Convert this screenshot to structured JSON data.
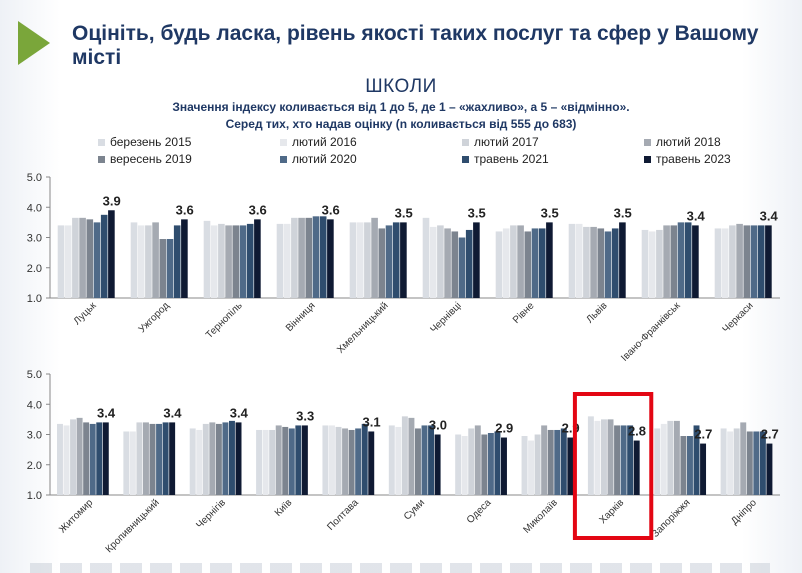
{
  "header": {
    "title": "Оцініть, будь ласка, рівень якості таких послуг та сфер у Вашому місті"
  },
  "chart_data": {
    "type": "bar",
    "title": "ШКОЛИ",
    "subtitle_1": "Значення індексу коливається від 1 до 5, де 1 – «жахливо», а 5 – «відмінно».",
    "subtitle_2": "Серед тих, хто надав оцінку (n коливається від 555 до 683)",
    "ylim": [
      1.0,
      5.0
    ],
    "yticks": [
      "1.0",
      "2.0",
      "3.0",
      "4.0",
      "5.0"
    ],
    "legend": [
      {
        "name": "березень 2015",
        "color": "#d9dde3"
      },
      {
        "name": "лютий 2016",
        "color": "#e6e8ec"
      },
      {
        "name": "лютий 2017",
        "color": "#cfd3d9"
      },
      {
        "name": "лютий 2018",
        "color": "#a5aab2"
      },
      {
        "name": "вересень 2019",
        "color": "#7c848f"
      },
      {
        "name": "лютий 2020",
        "color": "#4f6a88"
      },
      {
        "name": "травень 2021",
        "color": "#2f4d6e"
      },
      {
        "name": "травень 2023",
        "color": "#0f1a33"
      }
    ],
    "panels": [
      {
        "cities": [
          {
            "name": "Луцьк",
            "label": "3.9",
            "values": [
              3.4,
              3.4,
              3.65,
              3.65,
              3.6,
              3.5,
              3.75,
              3.9
            ]
          },
          {
            "name": "Ужгород",
            "label": "3.6",
            "values": [
              3.5,
              3.4,
              3.4,
              3.5,
              2.95,
              2.95,
              3.4,
              3.6
            ]
          },
          {
            "name": "Тернопіль",
            "label": "3.6",
            "values": [
              3.55,
              3.4,
              3.45,
              3.4,
              3.4,
              3.4,
              3.45,
              3.6
            ]
          },
          {
            "name": "Вінниця",
            "label": "3.6",
            "values": [
              3.45,
              3.45,
              3.65,
              3.65,
              3.65,
              3.7,
              3.7,
              3.6
            ]
          },
          {
            "name": "Хмельницький",
            "label": "3.5",
            "values": [
              3.5,
              3.5,
              3.5,
              3.65,
              3.3,
              3.4,
              3.5,
              3.5
            ]
          },
          {
            "name": "Чернівці",
            "label": "3.5",
            "values": [
              3.65,
              3.35,
              3.4,
              3.3,
              3.2,
              3.0,
              3.25,
              3.5
            ]
          },
          {
            "name": "Рівне",
            "label": "3.5",
            "values": [
              3.2,
              3.3,
              3.4,
              3.4,
              3.2,
              3.3,
              3.3,
              3.5
            ]
          },
          {
            "name": "Львів",
            "label": "3.5",
            "values": [
              3.45,
              3.45,
              3.35,
              3.35,
              3.3,
              3.2,
              3.3,
              3.5
            ]
          },
          {
            "name": "Івано-Франківськ",
            "label": "3.4",
            "values": [
              3.25,
              3.2,
              3.25,
              3.4,
              3.4,
              3.5,
              3.5,
              3.4
            ]
          },
          {
            "name": "Черкаси",
            "label": "3.4",
            "values": [
              3.3,
              3.3,
              3.4,
              3.45,
              3.4,
              3.4,
              3.4,
              3.4
            ]
          }
        ]
      },
      {
        "cities": [
          {
            "name": "Житомир",
            "label": "3.4",
            "values": [
              3.35,
              3.3,
              3.5,
              3.55,
              3.4,
              3.35,
              3.4,
              3.4
            ]
          },
          {
            "name": "Кропивницький",
            "label": "3.4",
            "values": [
              3.1,
              3.1,
              3.4,
              3.4,
              3.35,
              3.35,
              3.4,
              3.4
            ]
          },
          {
            "name": "Чернігів",
            "label": "3.4",
            "values": [
              3.2,
              3.15,
              3.35,
              3.4,
              3.35,
              3.4,
              3.45,
              3.4
            ]
          },
          {
            "name": "Київ",
            "label": "3.3",
            "values": [
              3.15,
              3.15,
              3.15,
              3.3,
              3.25,
              3.2,
              3.3,
              3.3
            ]
          },
          {
            "name": "Полтава",
            "label": "3.1",
            "values": [
              3.3,
              3.3,
              3.25,
              3.2,
              3.15,
              3.2,
              3.35,
              3.1
            ]
          },
          {
            "name": "Суми",
            "label": "3.0",
            "values": [
              3.3,
              3.25,
              3.6,
              3.55,
              3.2,
              3.3,
              3.3,
              3.0
            ]
          },
          {
            "name": "Одеса",
            "label": "2.9",
            "values": [
              3.0,
              2.95,
              3.2,
              3.3,
              3.0,
              3.05,
              3.1,
              2.9
            ]
          },
          {
            "name": "Миколаїв",
            "label": "2.9",
            "values": [
              2.95,
              2.8,
              3.0,
              3.3,
              3.15,
              3.15,
              3.2,
              2.9
            ]
          },
          {
            "name": "Харків",
            "label": "2.8",
            "values": [
              3.6,
              3.45,
              3.5,
              3.5,
              3.3,
              3.3,
              3.3,
              2.8
            ]
          },
          {
            "name": "Запоріжжя",
            "label": "2.7",
            "values": [
              3.2,
              3.35,
              3.45,
              3.45,
              2.95,
              2.95,
              3.3,
              2.7
            ]
          },
          {
            "name": "Дніпро",
            "label": "2.7",
            "values": [
              3.2,
              3.1,
              3.2,
              3.4,
              3.1,
              3.1,
              3.1,
              2.7
            ]
          }
        ]
      }
    ]
  }
}
